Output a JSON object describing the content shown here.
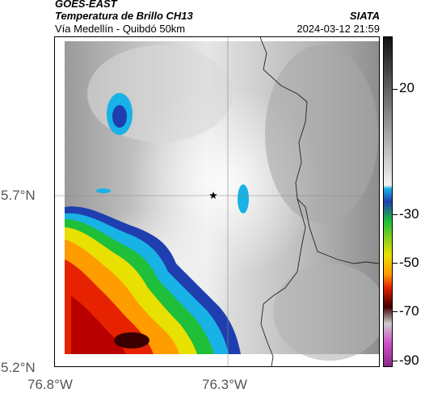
{
  "header": {
    "satellite": "GOES-EAST",
    "product": "Temperatura de Brillo CH13",
    "route": "Vía Medellín - Quibdó 50km",
    "brand": "SIATA",
    "datetime": "2024-03-12 21:59"
  },
  "axes": {
    "lat_labels": [
      "5.7°N",
      "5.2°N"
    ],
    "lon_labels": [
      "76.8°W",
      "76.3°W"
    ]
  },
  "colorbar": {
    "labels": [
      "20",
      "-30",
      "-50",
      "-70",
      "-90"
    ]
  },
  "marker": {
    "symbol": "★"
  }
}
